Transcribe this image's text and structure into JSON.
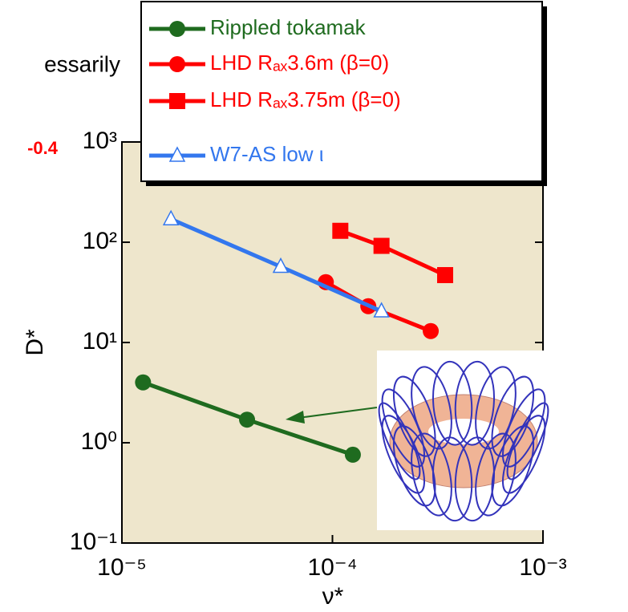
{
  "chart_data": {
    "type": "line",
    "fragments": [
      "essarily",
      "-0.4"
    ],
    "x_label": "ν*",
    "y_label": "D*",
    "xlog": true,
    "ylog": true,
    "xlim": [
      1e-05,
      0.001
    ],
    "ylim": [
      0.1,
      1000
    ],
    "xticks": [
      {
        "value": 1e-05,
        "label": "10⁻⁵"
      },
      {
        "value": 0.0001,
        "label": "10⁻⁴"
      },
      {
        "value": 0.001,
        "label": "10⁻³"
      }
    ],
    "yticks": [
      {
        "value": 0.1,
        "label": "10⁻¹"
      },
      {
        "value": 1,
        "label": "10⁰"
      },
      {
        "value": 10,
        "label": "10¹"
      },
      {
        "value": 100,
        "label": "10²"
      },
      {
        "value": 1000,
        "label": "10³"
      }
    ],
    "background": "#eee6cc",
    "series": [
      {
        "name": "Rippled tokamak",
        "color": "#1f6b1f",
        "marker": "circle",
        "x": [
          1.26e-05,
          3.93e-05,
          0.000125
        ],
        "values": [
          4,
          1.7,
          0.76
        ]
      },
      {
        "name": "LHD Rₐₓ3.6m (β=0)",
        "color": "#ff0000",
        "marker": "circle",
        "x": [
          9.3e-05,
          0.000148,
          0.000293
        ],
        "values": [
          40,
          23,
          13
        ]
      },
      {
        "name": "LHD Rₐₓ3.75m (β=0)",
        "color": "#ff0000",
        "marker": "square",
        "x": [
          0.000109,
          0.000171,
          0.000343
        ],
        "values": [
          130,
          92,
          47
        ]
      },
      {
        "name": "W7-AS low ι",
        "color": "#3377ee",
        "marker": "triangle",
        "x": [
          1.71e-05,
          5.68e-05,
          0.000171
        ],
        "values": [
          170,
          57,
          20.5
        ]
      }
    ]
  }
}
